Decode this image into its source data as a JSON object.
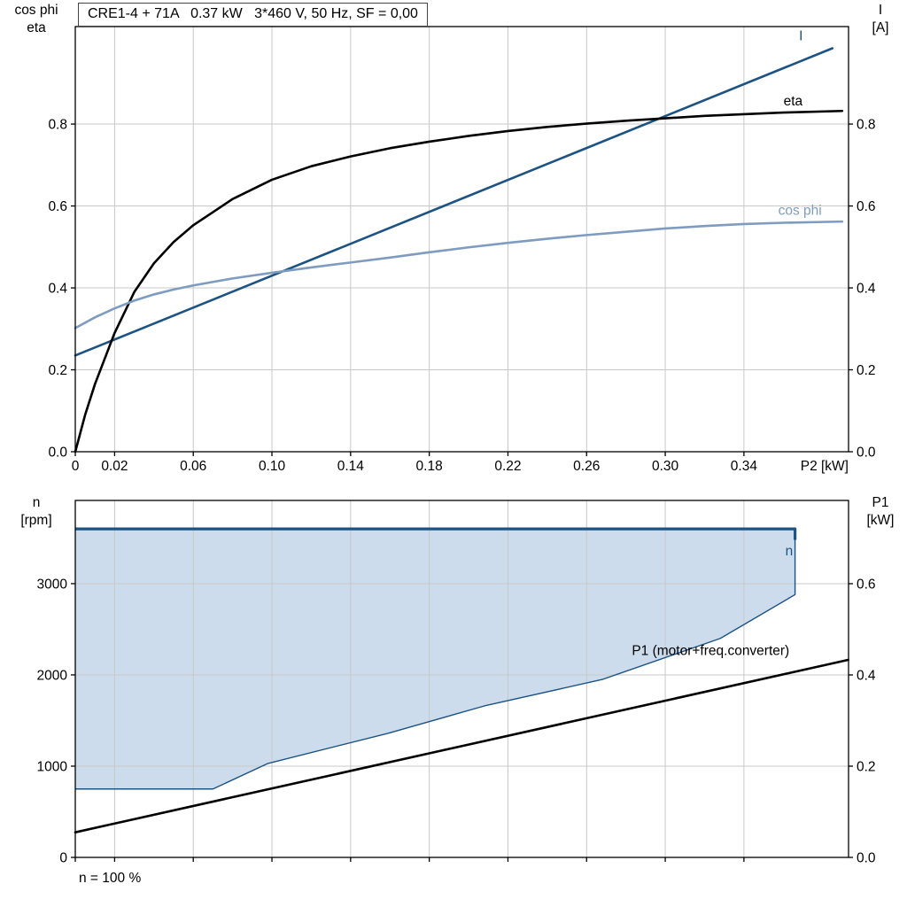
{
  "page": {
    "background": "#ffffff"
  },
  "chart_data": [
    {
      "type": "line",
      "title": "CRE1-4 + 71A   0.37 kW   3*460 V, 50 Hz, SF = 0,00",
      "x_axis_label": "P2 [kW]",
      "ylabel_left": [
        "cos phi",
        "eta"
      ],
      "ylabel_right": [
        "I",
        "[A]"
      ],
      "xlim": [
        0,
        0.3932
      ],
      "ylim_left": [
        0,
        1.038
      ],
      "ylim_right": [
        0,
        1.038
      ],
      "x_ticks": [
        0,
        0.02,
        0.06,
        0.1,
        0.14,
        0.18,
        0.22,
        0.26,
        0.3,
        0.34
      ],
      "x_tick_labels": [
        "0",
        "0.02",
        "0.06",
        "0.10",
        "0.14",
        "0.18",
        "0.22",
        "0.26",
        "0.30",
        "0.34"
      ],
      "y_ticks_left": [
        0,
        0.2,
        0.4,
        0.6,
        0.8
      ],
      "y_tick_labels_left": [
        "0.0",
        "0.2",
        "0.4",
        "0.6",
        "0.8"
      ],
      "y_ticks_right": [
        0,
        0.2,
        0.4,
        0.6,
        0.8
      ],
      "y_tick_labels_right": [
        "0.0",
        "0.2",
        "0.4",
        "0.6",
        "0.8"
      ],
      "grid": true,
      "grid_color": "#c8c8c8",
      "series": [
        {
          "name": "I",
          "color": "#1d5382",
          "width": 2.6,
          "axis": "left",
          "label": {
            "text": "I",
            "x": 0.369,
            "y": 1.005,
            "anchor": "middle"
          },
          "points": [
            [
              0,
              0.235
            ],
            [
              0.385,
              0.985
            ]
          ]
        },
        {
          "name": "eta",
          "color": "#000000",
          "width": 2.6,
          "axis": "left",
          "label": {
            "text": "eta",
            "x": 0.365,
            "y": 0.846,
            "anchor": "middle"
          },
          "points": [
            [
              0,
              0
            ],
            [
              0.005,
              0.09
            ],
            [
              0.01,
              0.165
            ],
            [
              0.02,
              0.29
            ],
            [
              0.03,
              0.39
            ],
            [
              0.04,
              0.46
            ],
            [
              0.05,
              0.512
            ],
            [
              0.06,
              0.553
            ],
            [
              0.08,
              0.617
            ],
            [
              0.1,
              0.664
            ],
            [
              0.12,
              0.697
            ],
            [
              0.14,
              0.721
            ],
            [
              0.16,
              0.741
            ],
            [
              0.18,
              0.757
            ],
            [
              0.2,
              0.771
            ],
            [
              0.22,
              0.783
            ],
            [
              0.24,
              0.793
            ],
            [
              0.26,
              0.801
            ],
            [
              0.28,
              0.808
            ],
            [
              0.3,
              0.814
            ],
            [
              0.32,
              0.82
            ],
            [
              0.34,
              0.824
            ],
            [
              0.36,
              0.828
            ],
            [
              0.39,
              0.832
            ]
          ]
        },
        {
          "name": "cos phi",
          "color": "#7e9cc0",
          "width": 2.6,
          "axis": "left",
          "label": {
            "text": "cos phi",
            "x": 0.3685,
            "y": 0.578,
            "anchor": "middle"
          },
          "points": [
            [
              0,
              0.302
            ],
            [
              0.01,
              0.328
            ],
            [
              0.02,
              0.35
            ],
            [
              0.03,
              0.369
            ],
            [
              0.04,
              0.384
            ],
            [
              0.05,
              0.396
            ],
            [
              0.06,
              0.406
            ],
            [
              0.08,
              0.423
            ],
            [
              0.1,
              0.437
            ],
            [
              0.12,
              0.45
            ],
            [
              0.14,
              0.462
            ],
            [
              0.16,
              0.474
            ],
            [
              0.18,
              0.487
            ],
            [
              0.2,
              0.499
            ],
            [
              0.22,
              0.51
            ],
            [
              0.24,
              0.52
            ],
            [
              0.26,
              0.529
            ],
            [
              0.28,
              0.537
            ],
            [
              0.3,
              0.545
            ],
            [
              0.32,
              0.551
            ],
            [
              0.34,
              0.556
            ],
            [
              0.36,
              0.559
            ],
            [
              0.39,
              0.562
            ]
          ]
        }
      ]
    },
    {
      "type": "area+line",
      "footer": "n = 100 %",
      "ylabel_left": [
        "n",
        "[rpm]"
      ],
      "ylabel_right": [
        "P1",
        "[kW]"
      ],
      "xlim": [
        0,
        0.3932
      ],
      "ylim_left": [
        0,
        3912
      ],
      "ylim_right": [
        0,
        0.7825
      ],
      "x_ticks": [
        0,
        0.02,
        0.06,
        0.1,
        0.14,
        0.18,
        0.22,
        0.26,
        0.3,
        0.34
      ],
      "x_tick_labels": [],
      "y_ticks_left": [
        0,
        1000,
        2000,
        3000
      ],
      "y_tick_labels_left": [
        "0",
        "1000",
        "2000",
        "3000"
      ],
      "y_ticks_right": [
        0,
        0.2,
        0.4,
        0.6
      ],
      "y_tick_labels_right": [
        "0.0",
        "0.2",
        "0.4",
        "0.6"
      ],
      "grid": true,
      "grid_color": "#c8c8c8",
      "envelope": {
        "name": "n",
        "fill_color": "#cddcec",
        "line_color": "#1d5382",
        "line_width": 1.4,
        "top_line_width": 3.2,
        "label": {
          "text": "n",
          "x": 0.363,
          "y": 3310,
          "anchor": "middle"
        },
        "points": [
          [
            0,
            3600
          ],
          [
            0.366,
            3600
          ],
          [
            0.366,
            2880
          ],
          [
            0.328,
            2400
          ],
          [
            0.268,
            1950
          ],
          [
            0.208,
            1660
          ],
          [
            0.159,
            1360
          ],
          [
            0.098,
            1030
          ],
          [
            0.07,
            750
          ],
          [
            0,
            750
          ]
        ],
        "top_line_points": [
          [
            0,
            3600
          ],
          [
            0.366,
            3600
          ],
          [
            0.366,
            3480
          ]
        ]
      },
      "series": [
        {
          "name": "P1 (motor+freq.converter)",
          "color": "#000000",
          "width": 2.6,
          "axis": "right",
          "label": {
            "text": "P1 (motor+freq.converter)",
            "x": 0.283,
            "y": 0.444,
            "anchor": "start"
          },
          "points": [
            [
              0,
              0.055
            ],
            [
              0.393,
              0.433
            ]
          ]
        }
      ]
    }
  ]
}
